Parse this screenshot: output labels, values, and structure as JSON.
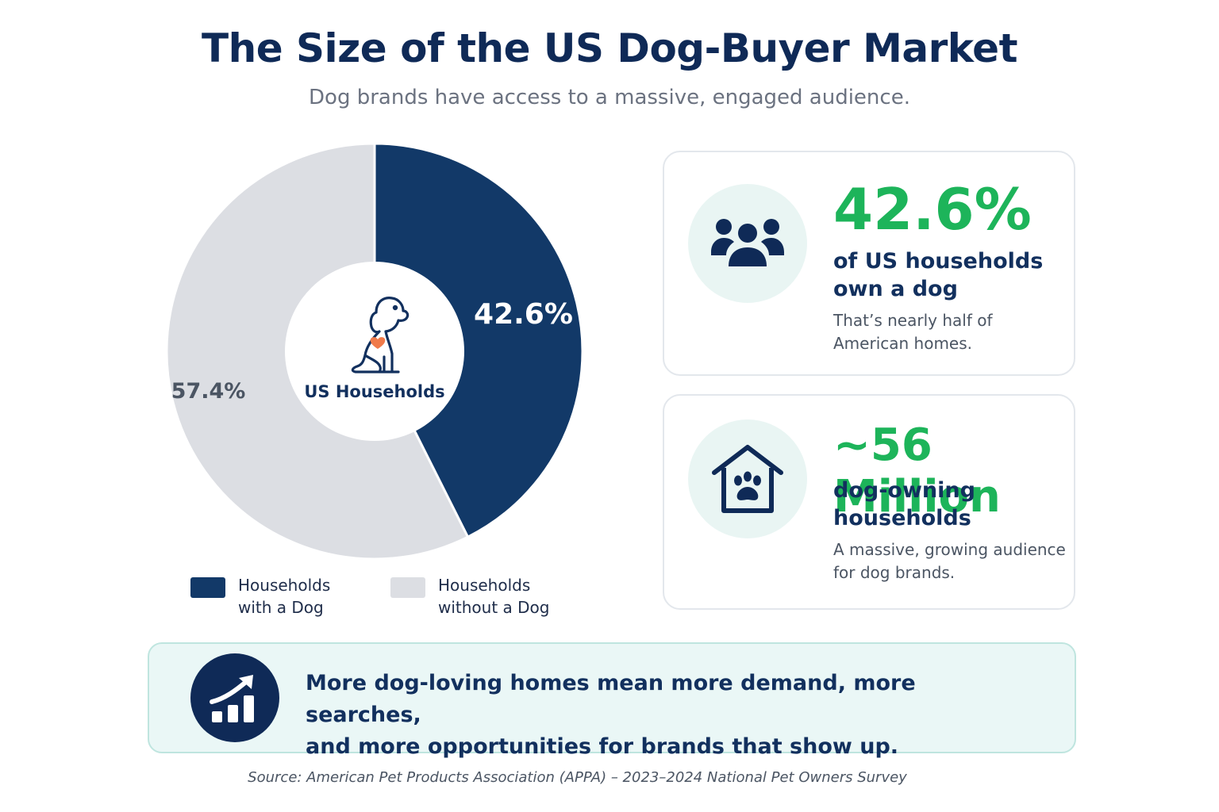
{
  "header": {
    "title": "The Size of the US Dog-Buyer Market",
    "subtitle": "Dog brands have access to a massive, engaged audience."
  },
  "chart_data": {
    "type": "pie",
    "title": "",
    "center_label": "US Households",
    "slices": [
      {
        "name": "Households with a Dog",
        "value": 42.6,
        "label": "42.6%",
        "color": "#123968"
      },
      {
        "name": "Households without a Dog",
        "value": 57.4,
        "label": "57.4%",
        "color": "#dcdee3"
      }
    ],
    "legend": {
      "placement": "bottom",
      "entries": [
        {
          "line1": "Households",
          "line2": "with a Dog",
          "color": "#123968"
        },
        {
          "line1": "Households",
          "line2": "without a Dog",
          "color": "#dcdee3"
        }
      ]
    }
  },
  "cards": [
    {
      "icon": "people-group-icon",
      "big": "42.6%",
      "mid_line1": "of US households",
      "mid_line2": "own a dog",
      "small_line1": "That’s nearly half of",
      "small_line2": "American homes."
    },
    {
      "icon": "house-paw-icon",
      "big": "~56 Million",
      "mid_line1": "dog-owning",
      "mid_line2": "households",
      "small_line1": "A massive, growing audience",
      "small_line2": "for dog brands."
    }
  ],
  "banner": {
    "icon": "growth-chart-icon",
    "line1": "More dog-loving homes mean more demand, more searches,",
    "line2": "and more opportunities for brands that show up."
  },
  "source": "Source: American Pet Products Association (APPA) – 2023–2024 National Pet Owners Survey",
  "colors": {
    "accent_green": "#1db45a",
    "navy": "#123968",
    "light_gray": "#dcdee3",
    "teal_bg": "#e9f5f3"
  }
}
